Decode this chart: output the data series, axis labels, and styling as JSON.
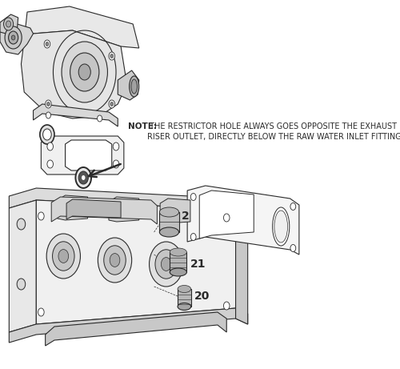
{
  "background_color": "#ffffff",
  "fig_width": 5.0,
  "fig_height": 4.61,
  "dpi": 100,
  "note_bold": "NOTE:",
  "note_line1": " THE RESTRICTOR HOLE ALWAYS GOES OPPOSITE THE EXHAUST",
  "note_line2": "RISER OUTLET, DIRECTLY BELOW THE RAW WATER INLET FITTING.",
  "label_2": "2",
  "label_21": "21",
  "label_20": "20",
  "line_color": "#2a2a2a",
  "text_color": "#111111",
  "fill_light": "#f0f0f0",
  "fill_mid": "#d8d8d8",
  "fill_dark": "#b8b8b8"
}
